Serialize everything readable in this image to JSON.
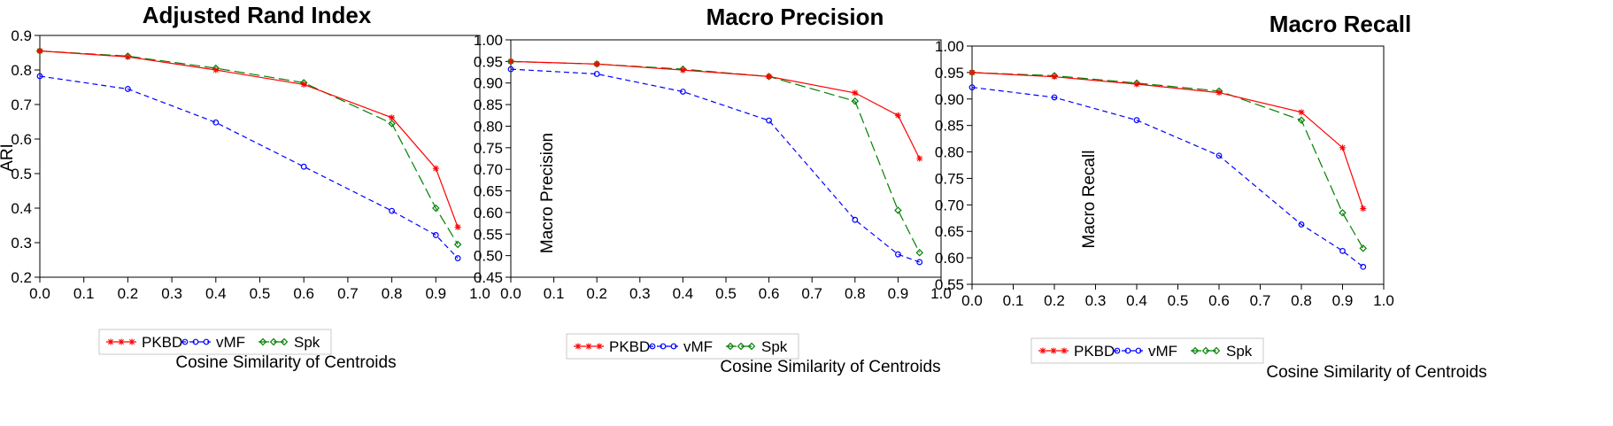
{
  "chart_data": [
    {
      "type": "line",
      "title": "Adjusted Rand Index",
      "xlabel": "Cosine Similarity of Centroids",
      "ylabel": "ARI",
      "xlim": [
        0.0,
        1.0
      ],
      "ylim": [
        0.2,
        0.9
      ],
      "xticks": [
        "0.0",
        "0.1",
        "0.2",
        "0.3",
        "0.4",
        "0.5",
        "0.6",
        "0.7",
        "0.8",
        "0.9",
        "1.0"
      ],
      "yticks": [
        "0.2",
        "0.3",
        "0.4",
        "0.5",
        "0.6",
        "0.7",
        "0.8",
        "0.9"
      ],
      "x": [
        0.0,
        0.2,
        0.4,
        0.6,
        0.8,
        0.9,
        0.95
      ],
      "series": [
        {
          "name": "PKBD",
          "color": "#ff0000",
          "marker": "star",
          "dash": "solid",
          "values": [
            0.855,
            0.838,
            0.8,
            0.758,
            0.662,
            0.515,
            0.345
          ]
        },
        {
          "name": "vMF",
          "color": "#0000ff",
          "marker": "circle",
          "dash": "short",
          "values": [
            0.782,
            0.745,
            0.648,
            0.52,
            0.392,
            0.322,
            0.255
          ]
        },
        {
          "name": "Spk",
          "color": "#008000",
          "marker": "diamond",
          "dash": "long",
          "values": [
            0.855,
            0.84,
            0.805,
            0.763,
            0.645,
            0.4,
            0.295
          ]
        }
      ]
    },
    {
      "type": "line",
      "title": "Macro Precision",
      "xlabel": "Cosine Similarity of Centroids",
      "ylabel": "Macro Precision",
      "xlim": [
        0.0,
        1.0
      ],
      "ylim": [
        0.45,
        1.0
      ],
      "xticks": [
        "0.0",
        "0.1",
        "0.2",
        "0.3",
        "0.4",
        "0.5",
        "0.6",
        "0.7",
        "0.8",
        "0.9",
        "1.0"
      ],
      "yticks": [
        "0.45",
        "0.50",
        "0.55",
        "0.60",
        "0.65",
        "0.70",
        "0.75",
        "0.80",
        "0.85",
        "0.90",
        "0.95",
        "1.00"
      ],
      "x": [
        0.0,
        0.2,
        0.4,
        0.6,
        0.8,
        0.9,
        0.95
      ],
      "series": [
        {
          "name": "PKBD",
          "color": "#ff0000",
          "marker": "star",
          "dash": "solid",
          "values": [
            0.95,
            0.944,
            0.93,
            0.915,
            0.877,
            0.825,
            0.725
          ]
        },
        {
          "name": "vMF",
          "color": "#0000ff",
          "marker": "circle",
          "dash": "short",
          "values": [
            0.932,
            0.921,
            0.88,
            0.813,
            0.583,
            0.503,
            0.485
          ]
        },
        {
          "name": "Spk",
          "color": "#008000",
          "marker": "diamond",
          "dash": "long",
          "values": [
            0.95,
            0.944,
            0.932,
            0.915,
            0.858,
            0.605,
            0.507
          ]
        }
      ]
    },
    {
      "type": "line",
      "title": "Macro Recall",
      "xlabel": "Cosine Similarity of Centroids",
      "ylabel": "Macro Recall",
      "xlim": [
        0.0,
        1.0
      ],
      "ylim": [
        0.55,
        1.0
      ],
      "xticks": [
        "0.0",
        "0.1",
        "0.2",
        "0.3",
        "0.4",
        "0.5",
        "0.6",
        "0.7",
        "0.8",
        "0.9",
        "1.0"
      ],
      "yticks": [
        "0.55",
        "0.60",
        "0.65",
        "0.70",
        "0.75",
        "0.80",
        "0.85",
        "0.90",
        "0.95",
        "1.00"
      ],
      "x": [
        0.0,
        0.2,
        0.4,
        0.6,
        0.8,
        0.9,
        0.95
      ],
      "series": [
        {
          "name": "PKBD",
          "color": "#ff0000",
          "marker": "star",
          "dash": "solid",
          "values": [
            0.95,
            0.942,
            0.928,
            0.912,
            0.875,
            0.808,
            0.693
          ]
        },
        {
          "name": "vMF",
          "color": "#0000ff",
          "marker": "circle",
          "dash": "short",
          "values": [
            0.922,
            0.903,
            0.86,
            0.793,
            0.663,
            0.613,
            0.583
          ]
        },
        {
          "name": "Spk",
          "color": "#008000",
          "marker": "diamond",
          "dash": "long",
          "values": [
            0.95,
            0.944,
            0.93,
            0.915,
            0.86,
            0.685,
            0.618
          ]
        }
      ]
    }
  ]
}
